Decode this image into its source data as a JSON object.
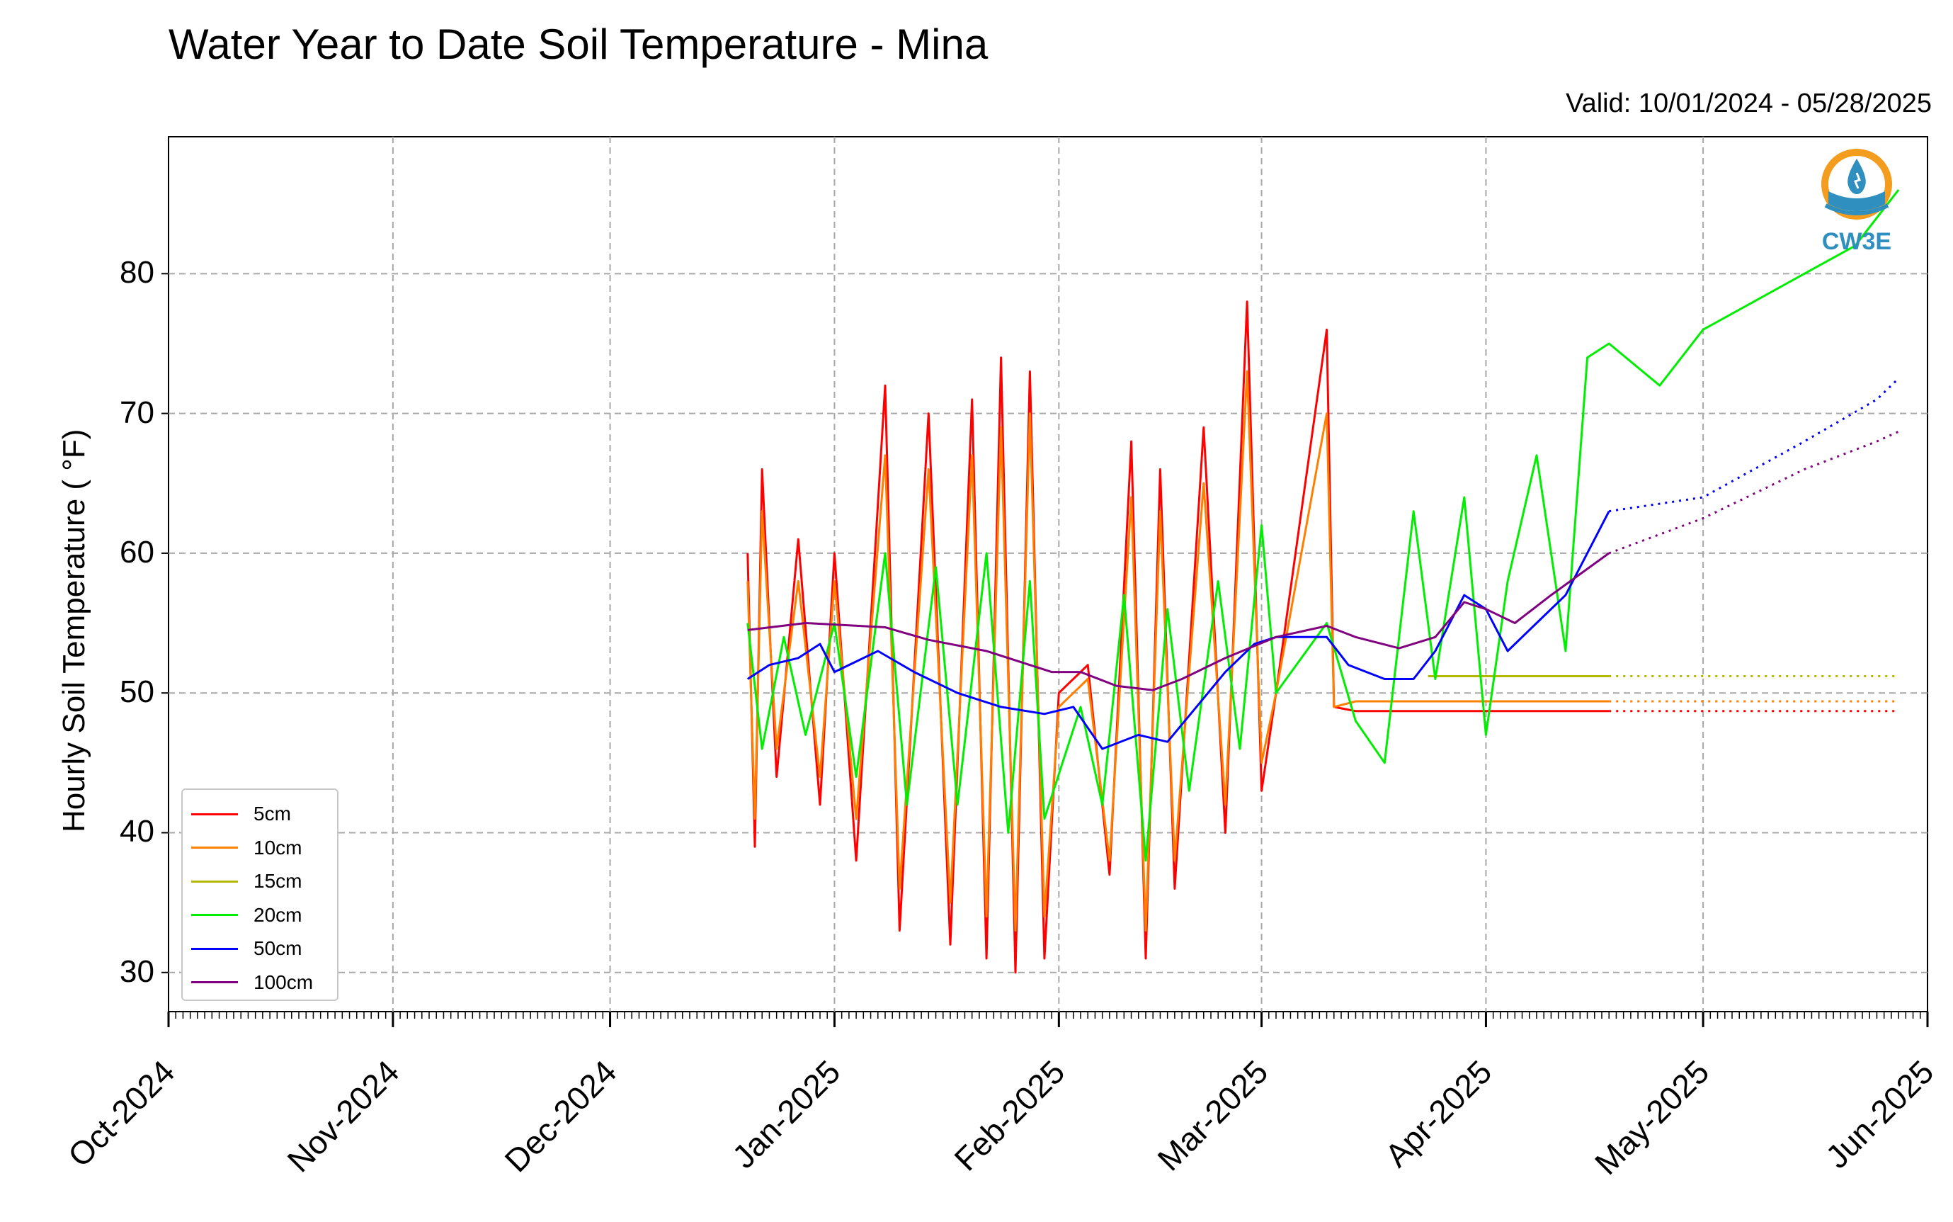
{
  "title": "Water Year to Date Soil Temperature - Mina",
  "valid_text": "Valid: 10/01/2024 - 05/28/2025",
  "ylabel": "Hourly Soil Temperature ( °F)",
  "logo_text": "CW3E",
  "y_ticks": [
    "30",
    "40",
    "50",
    "60",
    "70",
    "80"
  ],
  "x_ticks": [
    "Oct-2024",
    "Nov-2024",
    "Dec-2024",
    "Jan-2025",
    "Feb-2025",
    "Mar-2025",
    "Apr-2025",
    "May-2025",
    "Jun-2025"
  ],
  "legend": [
    {
      "label": "5cm",
      "color": "#ff0000"
    },
    {
      "label": "10cm",
      "color": "#ff8000"
    },
    {
      "label": "15cm",
      "color": "#b5b800"
    },
    {
      "label": "20cm",
      "color": "#00ee00"
    },
    {
      "label": "50cm",
      "color": "#0000ff"
    },
    {
      "label": "100cm",
      "color": "#800080"
    }
  ],
  "chart_data": {
    "type": "line",
    "title": "Water Year to Date Soil Temperature - Mina",
    "xlabel": "",
    "ylabel": "Hourly Soil Temperature ( °F)",
    "x_range": [
      "2024-10-01",
      "2025-06-01"
    ],
    "ylim": [
      27.2,
      89.8
    ],
    "grid": true,
    "legend_position": "lower-left",
    "series": [
      {
        "name": "5cm",
        "color": "#ff0000",
        "points": [
          [
            "2024-12-20",
            60
          ],
          [
            "2024-12-21",
            39
          ],
          [
            "2024-12-22",
            66
          ],
          [
            "2024-12-24",
            44
          ],
          [
            "2024-12-27",
            61
          ],
          [
            "2024-12-30",
            42
          ],
          [
            "2025-01-01",
            60
          ],
          [
            "2025-01-04",
            38
          ],
          [
            "2025-01-08",
            72
          ],
          [
            "2025-01-10",
            33
          ],
          [
            "2025-01-14",
            70
          ],
          [
            "2025-01-17",
            32
          ],
          [
            "2025-01-20",
            71
          ],
          [
            "2025-01-22",
            31
          ],
          [
            "2025-01-24",
            74
          ],
          [
            "2025-01-26",
            30
          ],
          [
            "2025-01-28",
            73
          ],
          [
            "2025-01-30",
            31
          ],
          [
            "2025-02-01",
            50
          ],
          [
            "2025-02-05",
            52
          ],
          [
            "2025-02-08",
            37
          ],
          [
            "2025-02-11",
            68
          ],
          [
            "2025-02-13",
            31
          ],
          [
            "2025-02-15",
            66
          ],
          [
            "2025-02-17",
            36
          ],
          [
            "2025-02-21",
            69
          ],
          [
            "2025-02-24",
            40
          ],
          [
            "2025-02-27",
            78
          ],
          [
            "2025-03-01",
            43
          ],
          [
            "2025-03-03",
            50
          ],
          [
            "2025-03-10",
            76
          ],
          [
            "2025-03-11",
            49
          ],
          [
            "2025-03-14",
            48.7
          ],
          [
            "2025-04-18",
            48.7
          ]
        ],
        "projected": [
          [
            "2025-04-18",
            48.7
          ],
          [
            "2025-05-28",
            48.7
          ]
        ]
      },
      {
        "name": "10cm",
        "color": "#ff8000",
        "points": [
          [
            "2024-12-20",
            58
          ],
          [
            "2024-12-21",
            41
          ],
          [
            "2024-12-22",
            63
          ],
          [
            "2024-12-24",
            46
          ],
          [
            "2024-12-27",
            58
          ],
          [
            "2024-12-30",
            44
          ],
          [
            "2025-01-01",
            58
          ],
          [
            "2025-01-04",
            41
          ],
          [
            "2025-01-08",
            67
          ],
          [
            "2025-01-10",
            36
          ],
          [
            "2025-01-14",
            66
          ],
          [
            "2025-01-17",
            35
          ],
          [
            "2025-01-20",
            67
          ],
          [
            "2025-01-22",
            34
          ],
          [
            "2025-01-24",
            69
          ],
          [
            "2025-01-26",
            33
          ],
          [
            "2025-01-28",
            70
          ],
          [
            "2025-01-30",
            34
          ],
          [
            "2025-02-01",
            49
          ],
          [
            "2025-02-05",
            51
          ],
          [
            "2025-02-08",
            38
          ],
          [
            "2025-02-11",
            64
          ],
          [
            "2025-02-13",
            33
          ],
          [
            "2025-02-15",
            63
          ],
          [
            "2025-02-17",
            38
          ],
          [
            "2025-02-21",
            65
          ],
          [
            "2025-02-24",
            42
          ],
          [
            "2025-02-27",
            73
          ],
          [
            "2025-03-01",
            45
          ],
          [
            "2025-03-03",
            50
          ],
          [
            "2025-03-10",
            70
          ],
          [
            "2025-03-11",
            49
          ],
          [
            "2025-03-14",
            49.4
          ],
          [
            "2025-04-18",
            49.4
          ]
        ],
        "projected": [
          [
            "2025-04-18",
            49.4
          ],
          [
            "2025-05-28",
            49.4
          ]
        ]
      },
      {
        "name": "15cm",
        "color": "#b5b800",
        "points": [
          [
            "2025-03-24",
            51.2
          ],
          [
            "2025-04-18",
            51.2
          ]
        ],
        "projected": [
          [
            "2025-04-18",
            51.2
          ],
          [
            "2025-05-28",
            51.2
          ]
        ]
      },
      {
        "name": "20cm",
        "color": "#00ee00",
        "points": [
          [
            "2024-12-20",
            55
          ],
          [
            "2024-12-22",
            46
          ],
          [
            "2024-12-25",
            54
          ],
          [
            "2024-12-28",
            47
          ],
          [
            "2025-01-01",
            55
          ],
          [
            "2025-01-04",
            44
          ],
          [
            "2025-01-08",
            60
          ],
          [
            "2025-01-11",
            42
          ],
          [
            "2025-01-15",
            59
          ],
          [
            "2025-01-18",
            42
          ],
          [
            "2025-01-22",
            60
          ],
          [
            "2025-01-25",
            40
          ],
          [
            "2025-01-28",
            58
          ],
          [
            "2025-01-30",
            41
          ],
          [
            "2025-02-04",
            49
          ],
          [
            "2025-02-07",
            42
          ],
          [
            "2025-02-10",
            57
          ],
          [
            "2025-02-13",
            38
          ],
          [
            "2025-02-16",
            56
          ],
          [
            "2025-02-19",
            43
          ],
          [
            "2025-02-23",
            58
          ],
          [
            "2025-02-26",
            46
          ],
          [
            "2025-03-01",
            62
          ],
          [
            "2025-03-03",
            50
          ],
          [
            "2025-03-10",
            55
          ],
          [
            "2025-03-14",
            48
          ],
          [
            "2025-03-18",
            45
          ],
          [
            "2025-03-22",
            63
          ],
          [
            "2025-03-25",
            51
          ],
          [
            "2025-03-29",
            64
          ],
          [
            "2025-04-01",
            47
          ],
          [
            "2025-04-04",
            58
          ],
          [
            "2025-04-08",
            67
          ],
          [
            "2025-04-12",
            53
          ],
          [
            "2025-04-15",
            74
          ],
          [
            "2025-04-18",
            75
          ],
          [
            "2025-04-25",
            72
          ],
          [
            "2025-05-01",
            76
          ],
          [
            "2025-05-08",
            78
          ],
          [
            "2025-05-15",
            80
          ],
          [
            "2025-05-22",
            82
          ],
          [
            "2025-05-25",
            84
          ],
          [
            "2025-05-28",
            86
          ]
        ]
      },
      {
        "name": "50cm",
        "color": "#0000ff",
        "points": [
          [
            "2024-12-20",
            51
          ],
          [
            "2024-12-23",
            52
          ],
          [
            "2024-12-27",
            52.5
          ],
          [
            "2024-12-30",
            53.5
          ],
          [
            "2025-01-01",
            51.5
          ],
          [
            "2025-01-07",
            53
          ],
          [
            "2025-01-12",
            51.5
          ],
          [
            "2025-01-18",
            50
          ],
          [
            "2025-01-24",
            49
          ],
          [
            "2025-01-30",
            48.5
          ],
          [
            "2025-02-03",
            49
          ],
          [
            "2025-02-07",
            46
          ],
          [
            "2025-02-12",
            47
          ],
          [
            "2025-02-16",
            46.5
          ],
          [
            "2025-02-20",
            49
          ],
          [
            "2025-02-24",
            51.5
          ],
          [
            "2025-02-28",
            53.5
          ],
          [
            "2025-03-03",
            54
          ],
          [
            "2025-03-10",
            54
          ],
          [
            "2025-03-13",
            52
          ],
          [
            "2025-03-18",
            51
          ],
          [
            "2025-03-22",
            51
          ],
          [
            "2025-03-25",
            53
          ],
          [
            "2025-03-29",
            57
          ],
          [
            "2025-04-01",
            56
          ],
          [
            "2025-04-04",
            53
          ],
          [
            "2025-04-08",
            55
          ],
          [
            "2025-04-12",
            57
          ],
          [
            "2025-04-16",
            61
          ],
          [
            "2025-04-18",
            63
          ]
        ],
        "projected": [
          [
            "2025-04-18",
            63
          ],
          [
            "2025-05-01",
            64
          ],
          [
            "2025-05-15",
            68
          ],
          [
            "2025-05-25",
            71
          ],
          [
            "2025-05-28",
            72.5
          ]
        ]
      },
      {
        "name": "100cm",
        "color": "#800080",
        "points": [
          [
            "2024-12-20",
            54.5
          ],
          [
            "2024-12-28",
            55
          ],
          [
            "2025-01-08",
            54.7
          ],
          [
            "2025-01-14",
            53.8
          ],
          [
            "2025-01-22",
            53
          ],
          [
            "2025-01-31",
            51.5
          ],
          [
            "2025-02-04",
            51.5
          ],
          [
            "2025-02-09",
            50.5
          ],
          [
            "2025-02-14",
            50.2
          ],
          [
            "2025-02-18",
            51
          ],
          [
            "2025-02-24",
            52.5
          ],
          [
            "2025-03-03",
            54
          ],
          [
            "2025-03-10",
            54.8
          ],
          [
            "2025-03-14",
            54
          ],
          [
            "2025-03-20",
            53.2
          ],
          [
            "2025-03-25",
            54
          ],
          [
            "2025-03-29",
            56.5
          ],
          [
            "2025-04-01",
            56
          ],
          [
            "2025-04-05",
            55
          ],
          [
            "2025-04-10",
            57
          ],
          [
            "2025-04-14",
            58.5
          ],
          [
            "2025-04-18",
            60
          ]
        ],
        "projected": [
          [
            "2025-04-18",
            60
          ],
          [
            "2025-05-01",
            62.5
          ],
          [
            "2025-05-15",
            66
          ],
          [
            "2025-05-25",
            68
          ],
          [
            "2025-05-28",
            68.7
          ]
        ]
      }
    ]
  }
}
